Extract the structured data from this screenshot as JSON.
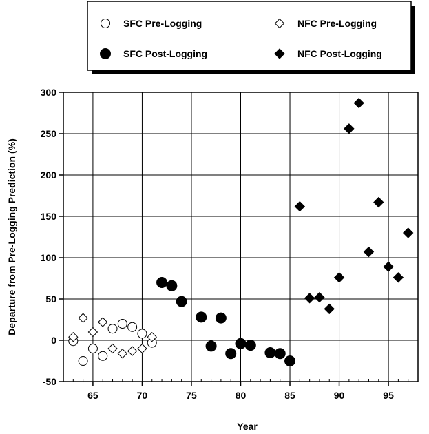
{
  "chart_data": {
    "type": "scatter",
    "xlabel": "Year",
    "ylabel": "Departure from Pre-Logging Prediction (%)",
    "xlim": [
      62,
      98
    ],
    "ylim": [
      -50,
      300
    ],
    "xticks": [
      65,
      70,
      75,
      80,
      85,
      90,
      95
    ],
    "yticks": [
      -50,
      0,
      50,
      100,
      150,
      200,
      250,
      300
    ],
    "grid": true,
    "legend_position": "top",
    "series": [
      {
        "name": "SFC Pre-Logging",
        "marker": "circle-open",
        "points": [
          {
            "x": 63,
            "y": -1
          },
          {
            "x": 64,
            "y": -25
          },
          {
            "x": 65,
            "y": -10
          },
          {
            "x": 66,
            "y": -19
          },
          {
            "x": 67,
            "y": 14
          },
          {
            "x": 68,
            "y": 20
          },
          {
            "x": 69,
            "y": 16
          },
          {
            "x": 70,
            "y": 8
          },
          {
            "x": 71,
            "y": -3
          }
        ]
      },
      {
        "name": "NFC Pre-Logging",
        "marker": "diamond-open",
        "points": [
          {
            "x": 63,
            "y": 4
          },
          {
            "x": 64,
            "y": 27
          },
          {
            "x": 65,
            "y": 10
          },
          {
            "x": 66,
            "y": 22
          },
          {
            "x": 67,
            "y": -10
          },
          {
            "x": 68,
            "y": -16
          },
          {
            "x": 69,
            "y": -13
          },
          {
            "x": 70,
            "y": -10
          },
          {
            "x": 71,
            "y": 4
          }
        ]
      },
      {
        "name": "SFC Post-Logging",
        "marker": "circle-filled",
        "points": [
          {
            "x": 72,
            "y": 70
          },
          {
            "x": 73,
            "y": 66
          },
          {
            "x": 74,
            "y": 47
          },
          {
            "x": 76,
            "y": 28
          },
          {
            "x": 77,
            "y": -7
          },
          {
            "x": 78,
            "y": 27
          },
          {
            "x": 79,
            "y": -16
          },
          {
            "x": 80,
            "y": -4
          },
          {
            "x": 81,
            "y": -6
          },
          {
            "x": 83,
            "y": -15
          },
          {
            "x": 84,
            "y": -16
          },
          {
            "x": 85,
            "y": -25
          }
        ]
      },
      {
        "name": "NFC Post-Logging",
        "marker": "diamond-filled",
        "points": [
          {
            "x": 86,
            "y": 162
          },
          {
            "x": 87,
            "y": 51
          },
          {
            "x": 88,
            "y": 52
          },
          {
            "x": 89,
            "y": 38
          },
          {
            "x": 90,
            "y": 76
          },
          {
            "x": 91,
            "y": 256
          },
          {
            "x": 92,
            "y": 287
          },
          {
            "x": 93,
            "y": 107
          },
          {
            "x": 94,
            "y": 167
          },
          {
            "x": 95,
            "y": 89
          },
          {
            "x": 96,
            "y": 76
          },
          {
            "x": 97,
            "y": 130
          }
        ]
      }
    ]
  }
}
